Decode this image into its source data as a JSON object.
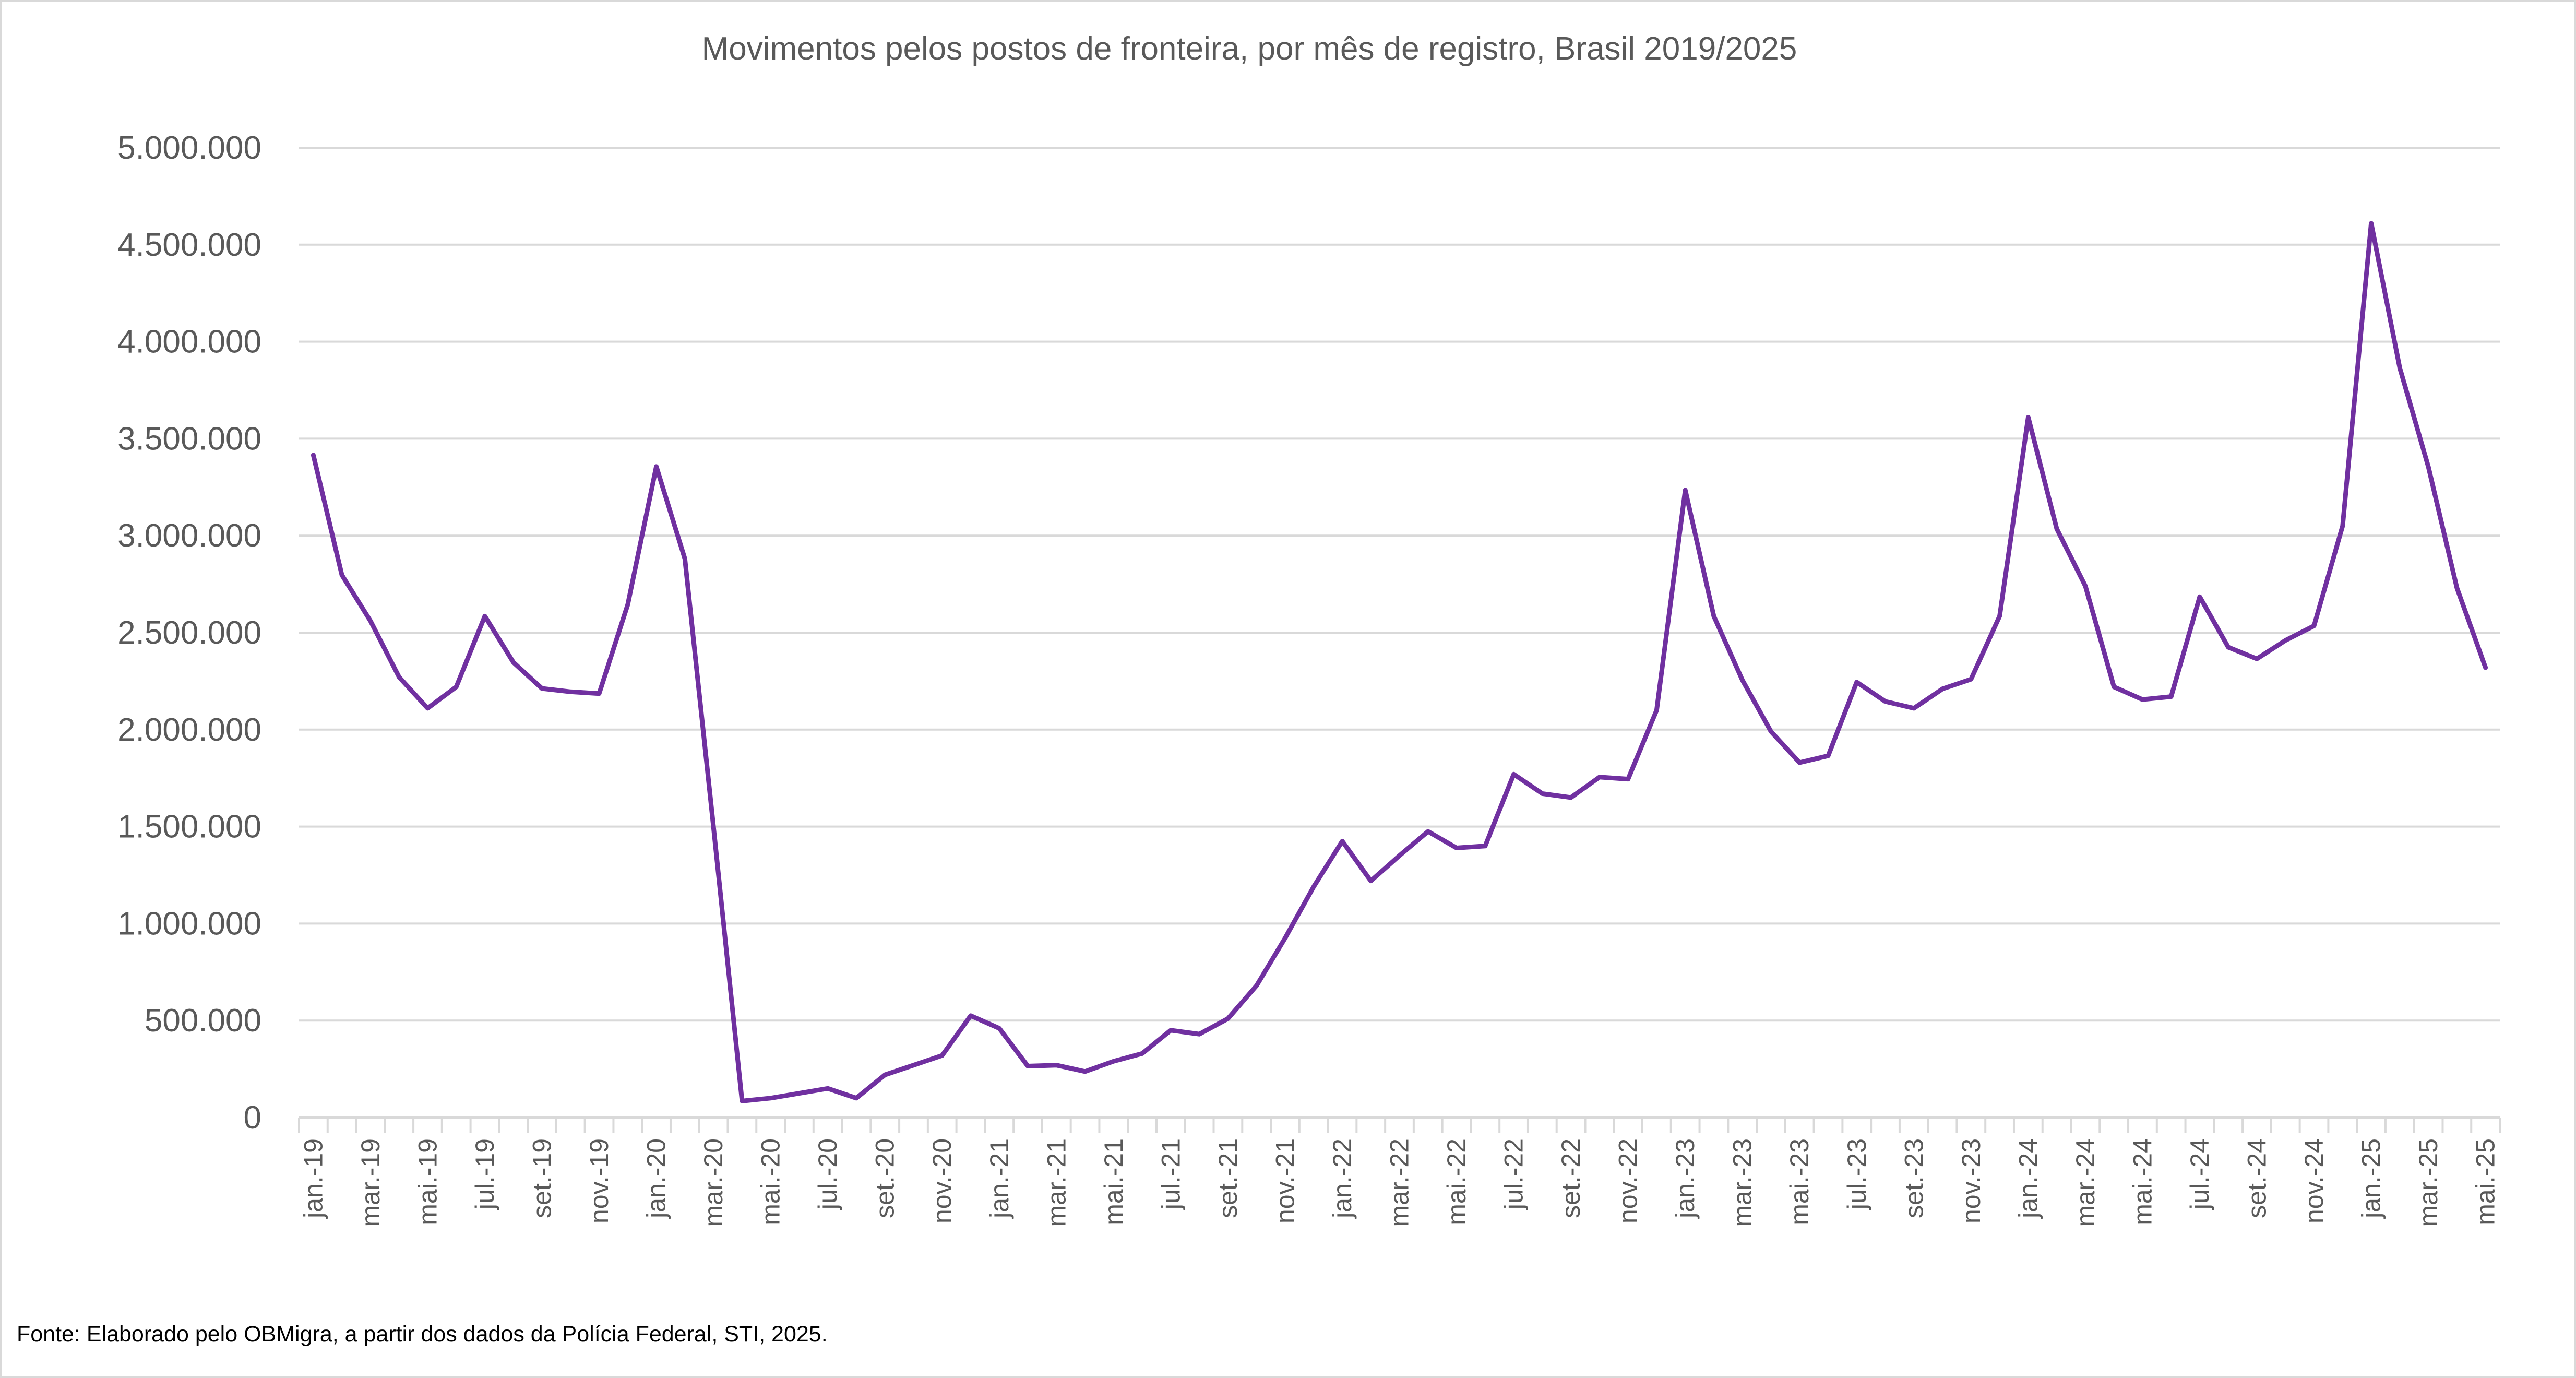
{
  "chart_data": {
    "type": "line",
    "title": "Movimentos pelos postos de fronteira, por mês de registro, Brasil 2019/2025",
    "xlabel": "",
    "ylabel": "",
    "ylim": [
      0,
      5000000
    ],
    "yticks": [
      "0",
      "500.000",
      "1.000.000",
      "1.500.000",
      "2.000.000",
      "2.500.000",
      "3.000.000",
      "3.500.000",
      "4.000.000",
      "4.500.000",
      "5.000.000"
    ],
    "grid": true,
    "legend": "none",
    "color": "#7030a0",
    "x_labels_shown": [
      "jan.-19",
      "mar.-19",
      "mai.-19",
      "jul.-19",
      "set.-19",
      "nov.-19",
      "jan.-20",
      "mar.-20",
      "mai.-20",
      "jul.-20",
      "set.-20",
      "nov.-20",
      "jan.-21",
      "mar.-21",
      "mai.-21",
      "jul.-21",
      "set.-21",
      "nov.-21",
      "jan.-22",
      "mar.-22",
      "mai.-22",
      "jul.-22",
      "set.-22",
      "nov.-22",
      "jan.-23",
      "mar.-23",
      "mai.-23",
      "jul.-23",
      "set.-23",
      "nov.-23",
      "jan.-24",
      "mar.-24",
      "mai.-24",
      "jul.-24",
      "set.-24",
      "nov.-24",
      "jan.-25",
      "mar.-25",
      "mai.-25"
    ],
    "series": [
      {
        "name": "Movimentos",
        "values": [
          3415000,
          2797000,
          2560000,
          2271000,
          2110000,
          2220000,
          2585000,
          2347000,
          2212000,
          2195000,
          2186000,
          2644000,
          3356000,
          2881000,
          1500000,
          85000,
          100000,
          125000,
          150000,
          100000,
          220000,
          270000,
          320000,
          525000,
          460000,
          265000,
          270000,
          237000,
          290000,
          330000,
          450000,
          430000,
          510000,
          680000,
          925000,
          1190000,
          1425000,
          1220000,
          1350000,
          1475000,
          1390000,
          1400000,
          1770000,
          1670000,
          1650000,
          1755000,
          1745000,
          2100000,
          3235000,
          2585000,
          2255000,
          1990000,
          1830000,
          1865000,
          2245000,
          2145000,
          2110000,
          2210000,
          2260000,
          2585000,
          3610000,
          3035000,
          2740000,
          2220000,
          2155000,
          2170000,
          2685000,
          2425000,
          2365000,
          2460000,
          2535000,
          3050000,
          4610000,
          3865000,
          3355000,
          2730000,
          2320000
        ]
      }
    ]
  },
  "footer": "Fonte: Elaborado pelo OBMigra, a partir dos dados da Polícia Federal, STI, 2025."
}
